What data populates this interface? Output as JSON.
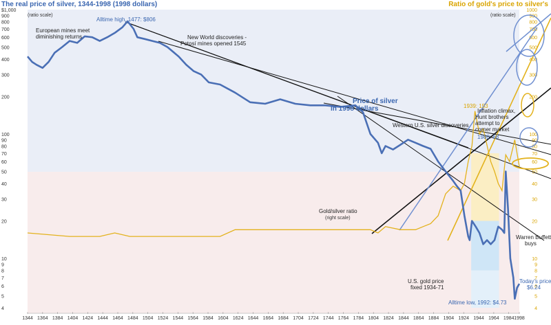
{
  "title_left": "The real price of silver, 1344-1998 (1998 dollars)",
  "title_right": "Ratio of gold's price to silver's",
  "ratio_scale_left": "(ratio scale)",
  "ratio_scale_right": "(ratio scale)",
  "colors": {
    "silver_line": "#4a6fb5",
    "ratio_line": "#e3b21c",
    "band_blue": "#eaeef7",
    "band_pink": "#f8ecec",
    "label_blue": "#3a66b0",
    "label_gold": "#d9a400",
    "shade_blue": "#cfe6f7",
    "shade_gold": "#fbeec4"
  },
  "annotations": {
    "alltime_high": "Alltime high, 1477: $806",
    "european_mines": "European mines meet diminishing returns",
    "new_world": "New World discoveries - Potosí mines opened 1545",
    "price_of_silver": "Price of silver in 1998 dollars",
    "western_us": "Western U.S. silver discoveries",
    "inflation": "Inflation climax, Hunt brothers attempt to corner market",
    "label_1939": "1939: 153",
    "label_1980": "1980: 68",
    "gold_silver_ratio": "Gold/silver ratio",
    "right_scale": "(right scale)",
    "us_gold_price": "U.S. gold price fixed 1934-71",
    "alltime_low": "Alltime low, 1992: $4.73",
    "warren_buffett": "Warren Buffett buys",
    "today_price": "Today's price: $6.24"
  },
  "chart_data": {
    "type": "line",
    "title": "The real price of silver, 1344-1998 (1998 dollars)",
    "x_range": [
      1344,
      1998
    ],
    "x_tick_labels": [
      "1344",
      "1364",
      "1384",
      "1404",
      "1424",
      "1444",
      "1464",
      "1484",
      "1504",
      "1524",
      "1544",
      "1564",
      "1584",
      "1604",
      "1624",
      "1644",
      "1664",
      "1684",
      "1704",
      "1724",
      "1744",
      "1764",
      "1784",
      "1804",
      "1824",
      "1844",
      "1864",
      "1884",
      "1904",
      "1924",
      "1944",
      "1964",
      "1984",
      "1998"
    ],
    "left_axis": {
      "scale": "log",
      "range": [
        4,
        1000
      ],
      "tick_values": [
        1000,
        900,
        800,
        700,
        600,
        500,
        400,
        300,
        200,
        100,
        90,
        80,
        70,
        60,
        50,
        40,
        30,
        20,
        10,
        9,
        8,
        7,
        6,
        5,
        4
      ],
      "tick_labels": [
        "$1,000",
        "900",
        "800",
        "700",
        "600",
        "500",
        "400",
        "300",
        "200",
        "100",
        "90",
        "80",
        "70",
        "60",
        "50",
        "40",
        "30",
        "20",
        "10",
        "9",
        "8",
        "7",
        "6",
        "5",
        "4"
      ]
    },
    "right_axis": {
      "scale": "log",
      "range": [
        4,
        1000
      ],
      "tick_values": [
        1000,
        900,
        800,
        700,
        600,
        500,
        400,
        300,
        200,
        100,
        90,
        80,
        70,
        60,
        50,
        40,
        30,
        20,
        10,
        9,
        8,
        7,
        6,
        5,
        4
      ],
      "tick_labels": [
        "1000",
        "900",
        "800",
        "700",
        "600",
        "500",
        "400",
        "300",
        "200",
        "100",
        "90",
        "80",
        "70",
        "60",
        "50",
        "40",
        "30",
        "20",
        "10",
        "9",
        "8",
        "7",
        "6",
        "5",
        "4"
      ]
    },
    "series": [
      {
        "name": "Price of silver in 1998 dollars",
        "axis": "left",
        "x": [
          1344,
          1350,
          1356,
          1364,
          1372,
          1380,
          1390,
          1400,
          1410,
          1420,
          1430,
          1440,
          1450,
          1460,
          1470,
          1477,
          1485,
          1490,
          1500,
          1510,
          1520,
          1530,
          1545,
          1555,
          1565,
          1575,
          1585,
          1600,
          1620,
          1640,
          1660,
          1680,
          1700,
          1720,
          1740,
          1760,
          1780,
          1790,
          1800,
          1810,
          1815,
          1820,
          1830,
          1840,
          1850,
          1860,
          1870,
          1880,
          1890,
          1900,
          1910,
          1915,
          1920,
          1925,
          1930,
          1932,
          1935,
          1940,
          1945,
          1950,
          1955,
          1960,
          1965,
          1970,
          1975,
          1978,
          1980,
          1983,
          1986,
          1990,
          1992,
          1995,
          1998
        ],
        "y": [
          420,
          380,
          360,
          340,
          380,
          450,
          500,
          560,
          540,
          610,
          600,
          560,
          600,
          650,
          720,
          806,
          700,
          600,
          580,
          560,
          540,
          500,
          420,
          360,
          320,
          300,
          260,
          250,
          215,
          180,
          175,
          190,
          175,
          170,
          170,
          165,
          170,
          150,
          100,
          85,
          70,
          80,
          75,
          82,
          90,
          85,
          80,
          76,
          60,
          50,
          42,
          38,
          35,
          22,
          15,
          14,
          20,
          18,
          16,
          13,
          14,
          13,
          14,
          18,
          17,
          16,
          50,
          25,
          10,
          7,
          4.73,
          5.8,
          6.24
        ]
      },
      {
        "name": "Gold/silver ratio",
        "axis": "right",
        "x": [
          1344,
          1400,
          1440,
          1460,
          1480,
          1500,
          1560,
          1600,
          1620,
          1640,
          1660,
          1680,
          1700,
          1720,
          1740,
          1760,
          1780,
          1800,
          1810,
          1820,
          1840,
          1860,
          1870,
          1880,
          1890,
          1900,
          1910,
          1920,
          1925,
          1930,
          1935,
          1939,
          1945,
          1950,
          1960,
          1965,
          1970,
          1975,
          1980,
          1985,
          1990,
          1992,
          1995,
          1998
        ],
        "y": [
          16,
          15,
          15,
          16,
          15,
          15,
          15,
          15,
          17,
          17,
          17,
          17,
          17,
          17,
          17,
          17,
          17,
          17,
          16,
          18,
          17,
          17,
          18,
          19,
          22,
          33,
          38,
          35,
          40,
          60,
          80,
          153,
          100,
          110,
          60,
          50,
          40,
          35,
          68,
          60,
          80,
          90,
          70,
          55
        ]
      }
    ],
    "legend": "none"
  }
}
